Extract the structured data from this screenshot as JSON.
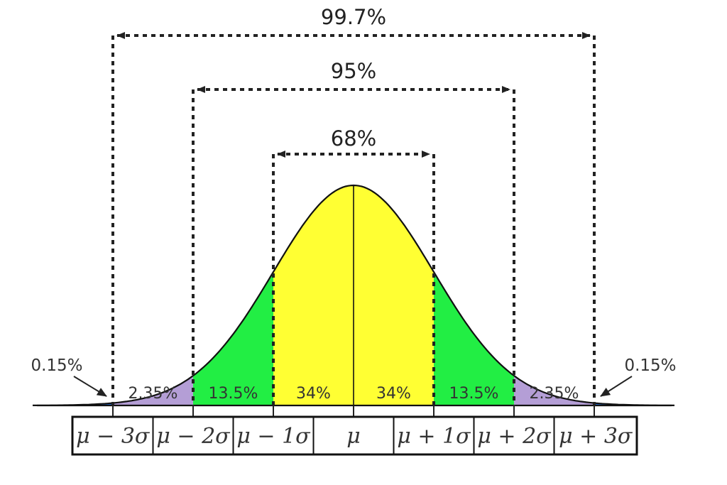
{
  "ranges": [
    {
      "label": "99.7%",
      "from_sigma": -3,
      "to_sigma": 3
    },
    {
      "label": "95%",
      "from_sigma": -2,
      "to_sigma": 2
    },
    {
      "label": "68%",
      "from_sigma": -1,
      "to_sigma": 1
    }
  ],
  "regions": [
    {
      "label": "2.35%",
      "from_sigma": -3,
      "to_sigma": -2,
      "color": "#b49ed6"
    },
    {
      "label": "13.5%",
      "from_sigma": -2,
      "to_sigma": -1,
      "color": "#22ee44"
    },
    {
      "label": "34%",
      "from_sigma": -1,
      "to_sigma": 0,
      "color": "#ffff33"
    },
    {
      "label": "34%",
      "from_sigma": 0,
      "to_sigma": 1,
      "color": "#ffff33"
    },
    {
      "label": "13.5%",
      "from_sigma": 1,
      "to_sigma": 2,
      "color": "#22ee44"
    },
    {
      "label": "2.35%",
      "from_sigma": 2,
      "to_sigma": 3,
      "color": "#b49ed6"
    }
  ],
  "tails": [
    {
      "label": "0.15%",
      "side": "left",
      "color": "#1e6fe0"
    },
    {
      "label": "0.15%",
      "side": "right",
      "color": "#1e6fe0"
    }
  ],
  "axis_labels": [
    "μ − 3σ",
    "μ − 2σ",
    "μ − 1σ",
    "μ",
    "μ + 1σ",
    "μ + 2σ",
    "μ + 3σ"
  ],
  "colors": {
    "curve": "#111111",
    "dashed": "#222222",
    "region_text": "#333333"
  }
}
